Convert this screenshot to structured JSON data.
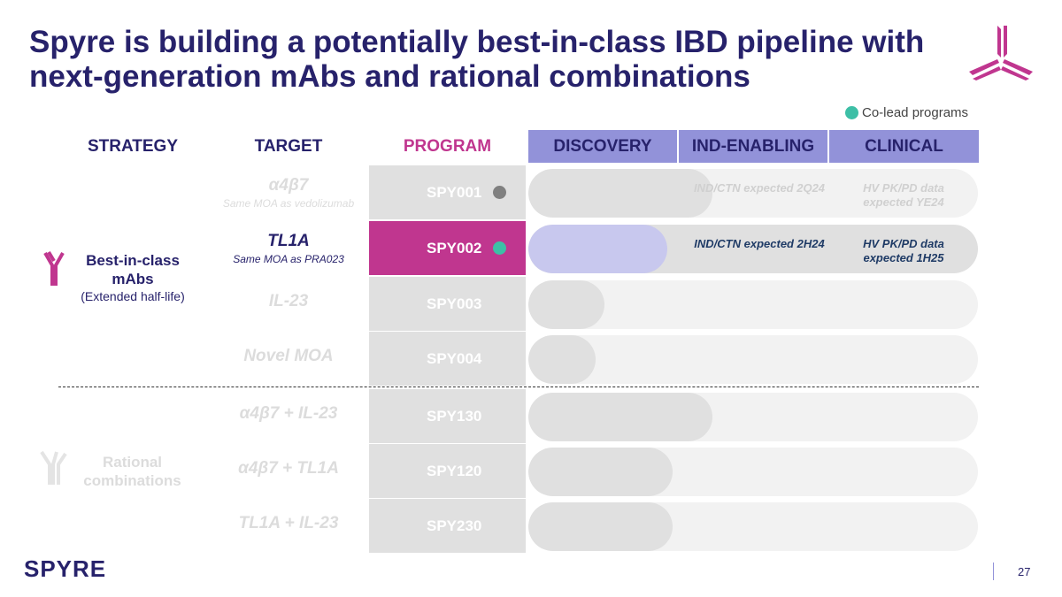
{
  "title": "Spyre is building a potentially best-in-class IBD pipeline with next-generation mAbs and rational combinations",
  "legend": {
    "label": "Co-lead programs",
    "color": "#3dbfa6"
  },
  "headers": {
    "strategy": "STRATEGY",
    "target": "TARGET",
    "program": "PROGRAM",
    "phases": [
      "DISCOVERY",
      "IND-ENABLING",
      "CLINICAL"
    ]
  },
  "strategies": [
    {
      "title": "Best-in-class mAbs",
      "subtitle": "(Extended half-life)",
      "icon": "antibody-icon"
    },
    {
      "title": "Rational combinations",
      "icon": "bispecific-antibody-icon"
    }
  ],
  "rows": [
    {
      "target": "α4β7",
      "target_sub": "Same MOA as vedolizumab",
      "program": "SPY001",
      "dot": "#808080",
      "progress": 0.41,
      "notes": [
        "IND/CTN expected 2Q24",
        "HV PK/PD data expected YE24"
      ]
    },
    {
      "target": "TL1A",
      "target_sub": "Same MOA as PRA023",
      "program": "SPY002",
      "dot": "#3dbfa6",
      "progress": 0.31,
      "notes": [
        "IND/CTN expected 2H24",
        "HV PK/PD data expected 1H25"
      ],
      "active": true
    },
    {
      "target": "IL-23",
      "program": "SPY003",
      "progress": 0.17
    },
    {
      "target": "Novel MOA",
      "program": "SPY004",
      "progress": 0.15
    },
    {
      "target": "α4β7 + IL-23",
      "program": "SPY130",
      "progress": 0.41
    },
    {
      "target": "α4β7 + TL1A",
      "program": "SPY120",
      "progress": 0.32
    },
    {
      "target": "TL1A + IL-23",
      "program": "SPY230",
      "progress": 0.32
    }
  ],
  "colors": {
    "brand": "#27226b",
    "accent": "#c0368f",
    "phase_header": "#9292d9",
    "active_fill": "#c8c8ee"
  },
  "footer": {
    "logo": "SPYRE",
    "page": "27"
  }
}
